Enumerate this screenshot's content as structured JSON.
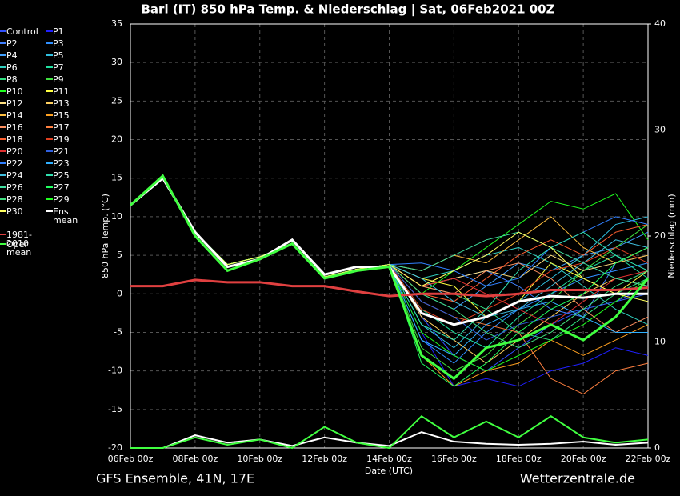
{
  "chart_data": {
    "type": "line",
    "title": "Bari  (IT)  850 hPa Temp. & Niederschlag | Sat, 06Feb2021 00Z",
    "ylabel": "850 hPa Temp. (°C)",
    "y2label": "Niederschlag (mm)",
    "xlabel": "Date (UTC)",
    "footer_left": "GFS Ensemble, 41N, 17E",
    "footer_right": "Wetterzentrale.de",
    "categories": [
      "06Feb 00z",
      null,
      "08Feb 00z",
      null,
      "10Feb 00z",
      null,
      "12Feb 00z",
      null,
      "14Feb 00z",
      null,
      "16Feb 00z",
      null,
      "18Feb 00z",
      null,
      "20Feb 00z",
      null,
      "22Feb 00z"
    ],
    "ylim": [
      -20,
      35
    ],
    "yticks": [
      -20,
      -15,
      -10,
      -5,
      0,
      5,
      10,
      15,
      20,
      25,
      30,
      35
    ],
    "y2lim": [
      0,
      40
    ],
    "y2ticks": [
      0,
      10,
      20,
      30,
      40
    ],
    "grid": true,
    "series": [
      {
        "name": "Control",
        "color": "#3050ff",
        "values": [
          11.5,
          15.2,
          8,
          3.8,
          4.8,
          6.5,
          2.2,
          3.2,
          3.8,
          -3,
          -8,
          -10,
          -7,
          -4,
          -2,
          -1,
          1
        ]
      },
      {
        "name": "P1",
        "color": "#2020ff",
        "values": [
          11.5,
          15.2,
          8,
          3.8,
          4.8,
          6.5,
          2.2,
          3.2,
          3.8,
          -5,
          -12,
          -11,
          -12,
          -10,
          -9,
          -7,
          -8
        ]
      },
      {
        "name": "P2",
        "color": "#4080ff",
        "values": [
          11.5,
          15.2,
          8,
          3.8,
          4.8,
          6.5,
          2.2,
          3.2,
          3.8,
          1,
          2,
          3,
          1,
          -2,
          -3,
          4,
          5
        ]
      },
      {
        "name": "P3",
        "color": "#3090ff",
        "values": [
          11.5,
          15.2,
          8,
          3.8,
          4.8,
          6.5,
          2.2,
          3.2,
          3.8,
          -6,
          -9,
          -5,
          -2,
          0,
          2,
          3,
          4
        ]
      },
      {
        "name": "P4",
        "color": "#40a0ff",
        "values": [
          11.5,
          15.2,
          8,
          3.8,
          4.8,
          6.5,
          2.2,
          3.2,
          3.8,
          0,
          -2,
          1,
          4,
          3,
          5,
          6,
          8
        ]
      },
      {
        "name": "P5",
        "color": "#30c0e0",
        "values": [
          11.5,
          15.2,
          8,
          3.8,
          4.8,
          6.5,
          2.2,
          3.2,
          3.8,
          -4,
          -7,
          -3,
          -1,
          2,
          5,
          9,
          10
        ]
      },
      {
        "name": "P6",
        "color": "#30d0c0",
        "values": [
          11.5,
          15.2,
          8,
          3.8,
          4.8,
          6.5,
          2.2,
          3.2,
          3.8,
          2,
          3,
          5,
          6,
          4,
          1,
          -2,
          -4
        ]
      },
      {
        "name": "P7",
        "color": "#20e0a0",
        "values": [
          11.5,
          15.2,
          8,
          3.8,
          4.8,
          6.5,
          2.2,
          3.2,
          3.8,
          -2,
          -5,
          -7,
          -3,
          0,
          3,
          5,
          2
        ]
      },
      {
        "name": "P8",
        "color": "#30e080",
        "values": [
          11.5,
          15.2,
          8,
          3.8,
          4.8,
          6.5,
          2.2,
          3.2,
          3.8,
          1,
          0,
          -2,
          -5,
          -6,
          -3,
          0,
          2
        ]
      },
      {
        "name": "P9",
        "color": "#40e040",
        "values": [
          11.5,
          15.2,
          8,
          3.8,
          4.8,
          6.5,
          2.2,
          3.2,
          3.8,
          -7,
          -10,
          -8,
          -4,
          -1,
          3,
          6,
          9
        ]
      },
      {
        "name": "P10",
        "color": "#20ff20",
        "values": [
          11.5,
          15.2,
          8,
          3.8,
          4.8,
          6.5,
          2.2,
          3.2,
          3.8,
          0,
          3,
          6,
          9,
          12,
          11,
          13,
          7
        ]
      },
      {
        "name": "P11",
        "color": "#ffff40",
        "values": [
          11.5,
          15.2,
          8,
          3.8,
          4.8,
          6.5,
          2.2,
          3.2,
          3.8,
          2,
          1,
          -3,
          -1,
          4,
          2,
          0,
          3
        ]
      },
      {
        "name": "P12",
        "color": "#ffe080",
        "values": [
          11.5,
          15.2,
          8,
          3.8,
          4.8,
          6.5,
          2.2,
          3.2,
          3.8,
          1,
          2,
          3,
          2,
          5,
          3,
          4,
          6
        ]
      },
      {
        "name": "P13",
        "color": "#ffd060",
        "values": [
          11.5,
          15.2,
          8,
          3.8,
          4.8,
          6.5,
          2.2,
          3.2,
          3.8,
          -3,
          -6,
          -9,
          -6,
          -3,
          0,
          2,
          1
        ]
      },
      {
        "name": "P14",
        "color": "#ffc040",
        "values": [
          11.5,
          15.2,
          8,
          3.8,
          4.8,
          6.5,
          2.2,
          3.2,
          3.8,
          3,
          5,
          4,
          7,
          10,
          6,
          4,
          5
        ]
      },
      {
        "name": "P15",
        "color": "#ffa020",
        "values": [
          11.5,
          15.2,
          8,
          3.8,
          4.8,
          6.5,
          2.2,
          3.2,
          3.8,
          -8,
          -12,
          -10,
          -9,
          -6,
          -8,
          -6,
          -4
        ]
      },
      {
        "name": "P16",
        "color": "#ff9060",
        "values": [
          11.5,
          15.2,
          8,
          3.8,
          4.8,
          6.5,
          2.2,
          3.2,
          3.8,
          1,
          0,
          3,
          4,
          2,
          -2,
          -5,
          -3
        ]
      },
      {
        "name": "P17",
        "color": "#ff8040",
        "values": [
          11.5,
          15.2,
          8,
          3.8,
          4.8,
          6.5,
          2.2,
          3.2,
          3.8,
          -1,
          -3,
          -4,
          -5,
          -11,
          -13,
          -10,
          -9
        ]
      },
      {
        "name": "P18",
        "color": "#ff6030",
        "values": [
          11.5,
          15.2,
          8,
          3.8,
          4.8,
          6.5,
          2.2,
          3.2,
          3.8,
          0,
          -1,
          2,
          5,
          7,
          5,
          8,
          9
        ]
      },
      {
        "name": "P19",
        "color": "#e04020",
        "values": [
          11.5,
          15.2,
          8,
          3.8,
          4.8,
          6.5,
          2.2,
          3.2,
          3.8,
          -2,
          -4,
          -2,
          0,
          3,
          4,
          6,
          4
        ]
      },
      {
        "name": "P20",
        "color": "#e03030",
        "values": [
          11.5,
          15.2,
          8,
          3.8,
          4.8,
          6.5,
          2.2,
          3.2,
          3.8,
          1,
          2,
          0,
          -2,
          -4,
          -1,
          2,
          3
        ]
      },
      {
        "name": "P21",
        "color": "#3060e0",
        "values": [
          11.5,
          15.2,
          8,
          3.8,
          4.8,
          6.5,
          2.2,
          3.2,
          3.8,
          -1,
          -3,
          -6,
          -4,
          -3,
          -2,
          -1,
          0
        ]
      },
      {
        "name": "P22",
        "color": "#3080ff",
        "values": [
          11.5,
          15.2,
          8,
          3.8,
          4.8,
          6.5,
          2.2,
          3.2,
          3.8,
          4,
          3,
          1,
          2,
          6,
          8,
          10,
          9
        ]
      },
      {
        "name": "P23",
        "color": "#30b0ff",
        "values": [
          11.5,
          15.2,
          8,
          3.8,
          4.8,
          6.5,
          2.2,
          3.2,
          3.8,
          -6,
          -8,
          -4,
          -2,
          -1,
          -3,
          -5,
          -5
        ]
      },
      {
        "name": "P24",
        "color": "#40c0e0",
        "values": [
          11.5,
          15.2,
          8,
          3.8,
          4.8,
          6.5,
          2.2,
          3.2,
          3.8,
          2,
          -1,
          -3,
          -2,
          1,
          4,
          7,
          6
        ]
      },
      {
        "name": "P25",
        "color": "#30e0b0",
        "values": [
          11.5,
          15.2,
          8,
          3.8,
          4.8,
          6.5,
          2.2,
          3.2,
          3.8,
          -4,
          -6,
          -2,
          3,
          6,
          8,
          5,
          3
        ]
      },
      {
        "name": "P26",
        "color": "#40e0a0",
        "values": [
          11.5,
          15.2,
          8,
          3.8,
          4.8,
          6.5,
          2.2,
          3.2,
          3.8,
          3,
          5,
          7,
          8,
          6,
          4,
          2,
          1
        ]
      },
      {
        "name": "P27",
        "color": "#20ff60",
        "values": [
          11.5,
          15.2,
          8,
          3.8,
          4.8,
          6.5,
          2.2,
          3.2,
          3.8,
          -9,
          -12,
          -9,
          -5,
          -2,
          0,
          4,
          6
        ]
      },
      {
        "name": "P28",
        "color": "#40e080",
        "values": [
          11.5,
          15.2,
          8,
          3.8,
          4.8,
          6.5,
          2.2,
          3.2,
          3.8,
          0,
          -2,
          -5,
          -7,
          -5,
          -2,
          1,
          3
        ]
      },
      {
        "name": "P29",
        "color": "#20ff20",
        "values": [
          11.5,
          15.2,
          8,
          3.8,
          4.8,
          6.5,
          2.2,
          3.2,
          3.8,
          -5,
          -8,
          -10,
          -8,
          -6,
          -4,
          -1,
          2
        ]
      },
      {
        "name": "P30",
        "color": "#ffff60",
        "values": [
          11.5,
          15.2,
          8,
          3.8,
          4.8,
          6.5,
          2.2,
          3.2,
          3.8,
          1,
          3,
          5,
          8,
          6,
          2,
          0,
          -1
        ]
      },
      {
        "name": "Ens. mean",
        "color": "#ffffff",
        "values": [
          11.5,
          15,
          8,
          3.5,
          4.5,
          7,
          2.5,
          3.5,
          3.5,
          -2.5,
          -4,
          -3,
          -1,
          -0.3,
          -0.5,
          0,
          0
        ]
      },
      {
        "name": "1981-2010 mean",
        "color": "#e04040",
        "values": [
          1,
          1,
          1.8,
          1.5,
          1.5,
          1,
          1,
          0.3,
          -0.3,
          0,
          0,
          -0.3,
          0,
          0.5,
          0.5,
          0.5,
          0.8
        ]
      },
      {
        "name": "Oper",
        "color": "#40ff40",
        "values": [
          11.5,
          15.3,
          7.5,
          3,
          4.5,
          6.5,
          2,
          3,
          3.5,
          -8,
          -11,
          -7,
          -6,
          -4,
          -6,
          -3,
          2
        ]
      }
    ],
    "precipitation": [
      {
        "name": "Ens. mean",
        "color": "#ffffff",
        "axis": "y2",
        "values": [
          0,
          0,
          1.2,
          0.5,
          0.8,
          0.2,
          1,
          0.5,
          0.2,
          1.5,
          0.6,
          0.4,
          0.3,
          0.4,
          0.6,
          0.3,
          0.5
        ]
      },
      {
        "name": "Oper",
        "color": "#40ff40",
        "axis": "y2",
        "values": [
          0,
          0,
          1,
          0.3,
          0.8,
          0,
          2,
          0.5,
          0,
          3,
          1,
          2.5,
          1,
          3,
          1,
          0.5,
          0.8
        ]
      }
    ]
  }
}
